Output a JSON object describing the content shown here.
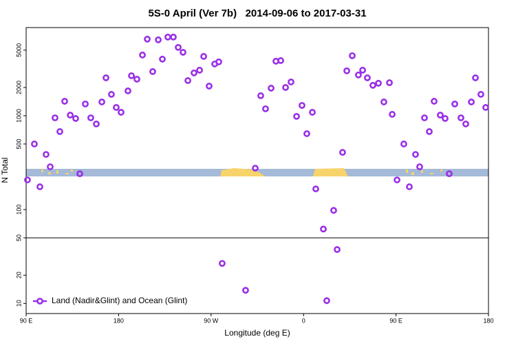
{
  "chart_data": {
    "type": "scatter",
    "log_y": true,
    "title": "5S-0 April (Ver 7b)   2014-09-06 to 2017-03-31",
    "x_label": "Longitude (deg E)",
    "y_label": "N Total",
    "xlim": [
      90,
      540
    ],
    "ylim": [
      7.8,
      8700
    ],
    "xticks": [
      {
        "value": 90,
        "label": "90 E"
      },
      {
        "value": 180,
        "label": "180"
      },
      {
        "value": 270,
        "label": "90 W"
      },
      {
        "value": 360,
        "label": "0"
      },
      {
        "value": 450,
        "label": "90 E"
      },
      {
        "value": 540,
        "label": "180"
      }
    ],
    "yticks": [
      10,
      20,
      50,
      100,
      500,
      1000,
      2000,
      5000
    ],
    "hline": 50,
    "legend": "bottom-left",
    "series": [
      {
        "name": "Land (Nadir&Glint) and Ocean (Glint)",
        "color": "#9a2ee6",
        "x": [
          91.3,
          98,
          103.4,
          109.4,
          113.4,
          118.1,
          122.8,
          127.5,
          132.9,
          138.2,
          142.2,
          147.6,
          152.9,
          158.3,
          163.7,
          167.7,
          173,
          177.7,
          182.4,
          189.1,
          192.5,
          197.8,
          203.2,
          207.9,
          213.2,
          218.6,
          222.6,
          227.9,
          233.3,
          238,
          242.7,
          247.4,
          253.4,
          258.8,
          262.8,
          268.1,
          273.5,
          277.5,
          280.8,
          303.6,
          313,
          318.3,
          323,
          328.4,
          333.1,
          337.8,
          342.5,
          347.8,
          353.2,
          358.5,
          363.2,
          368.6,
          371.9,
          379.3,
          382.6,
          389.3,
          392.7,
          398,
          402.1,
          407.4,
          413.4,
          417.5,
          422.1,
          427.5,
          432.9,
          438.2,
          443.6,
          446.3,
          451,
          457.6,
          463,
          469,
          473,
          477.7,
          482.4,
          487.1,
          493.1,
          497.8,
          501.8,
          507.2,
          513.2,
          517.9,
          523.3,
          527.3,
          532.6,
          537.3
        ],
        "values": [
          207,
          500,
          175,
          387,
          286,
          950,
          678,
          1426,
          1016,
          935,
          241,
          1334,
          950,
          817,
          1402,
          2535,
          1690,
          1225,
          1088,
          1840,
          2668,
          2454,
          4436,
          6550,
          2957,
          6440,
          4010,
          6890,
          6890,
          5350,
          4740,
          2370,
          2860,
          3058,
          4290,
          2070,
          3560,
          3750,
          26.7,
          13.8,
          276,
          1634,
          1186,
          1967,
          3810,
          3870,
          2000,
          2290,
          984,
          1288,
          644,
          1088,
          166,
          62,
          10.7,
          98,
          37.5,
          407,
          3010,
          4360,
          2720,
          3058,
          2535,
          2110,
          2220,
          1402,
          2250,
          1035,
          207,
          500,
          175,
          387,
          286,
          950,
          678,
          1426,
          1016,
          935,
          241,
          1334,
          950,
          817,
          1402,
          2535,
          1690,
          1225
        ]
      }
    ]
  }
}
